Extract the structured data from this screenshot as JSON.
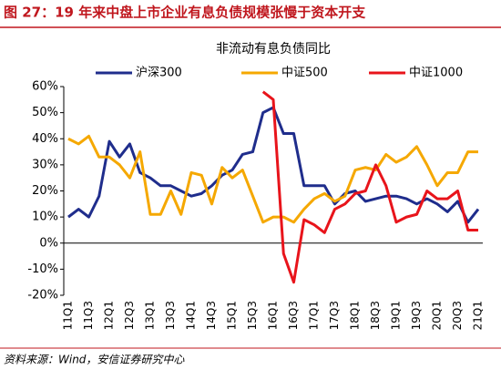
{
  "header": {
    "title": "图 27：19 年来中盘上市企业有息负债规模张慢于资本开支"
  },
  "chart_data": {
    "type": "line",
    "title": "非流动有息负债同比",
    "categories": [
      "11Q1",
      null,
      "11Q3",
      null,
      "12Q1",
      null,
      "12Q3",
      null,
      "13Q1",
      null,
      "13Q3",
      null,
      "14Q1",
      null,
      "14Q3",
      null,
      "15Q1",
      null,
      "15Q3",
      null,
      "16Q1",
      null,
      "16Q3",
      null,
      "17Q1",
      null,
      "17Q3",
      null,
      "18Q1",
      null,
      "18Q3",
      null,
      "19Q1",
      null,
      "19Q3",
      null,
      "20Q1",
      null,
      "20Q3",
      null,
      "21Q1"
    ],
    "series": [
      {
        "name": "沪深300",
        "color": "#1f2d8c",
        "values": [
          10,
          13,
          10,
          18,
          39,
          33,
          38,
          27,
          25,
          22,
          22,
          20,
          18,
          19,
          22,
          26,
          28,
          34,
          35,
          50,
          52,
          42,
          42,
          22,
          22,
          22,
          15,
          19,
          20,
          16,
          17,
          18,
          18,
          17,
          15,
          17,
          15,
          12,
          16,
          8,
          13
        ]
      },
      {
        "name": "中证500",
        "color": "#f5a800",
        "values": [
          40,
          38,
          41,
          33,
          33,
          30,
          25,
          35,
          11,
          11,
          20,
          11,
          27,
          26,
          15,
          29,
          25,
          28,
          18,
          8,
          10,
          10,
          8,
          13,
          17,
          19,
          16,
          18,
          28,
          29,
          28,
          34,
          31,
          33,
          37,
          30,
          22,
          27,
          27,
          35,
          35
        ]
      },
      {
        "name": "中证1000",
        "color": "#e8141b",
        "values": [
          null,
          null,
          null,
          null,
          null,
          null,
          null,
          null,
          null,
          null,
          null,
          null,
          null,
          null,
          null,
          null,
          null,
          null,
          null,
          58,
          55,
          -4,
          -15,
          9,
          7,
          4,
          13,
          15,
          19,
          20,
          30,
          22,
          8,
          10,
          11,
          20,
          17,
          17,
          20,
          5,
          5
        ]
      }
    ],
    "ylim": [
      -20,
      60
    ],
    "yticks": [
      {
        "value": -20,
        "label": "-20%"
      },
      {
        "value": -10,
        "label": "-10%"
      },
      {
        "value": 0,
        "label": "0%"
      },
      {
        "value": 10,
        "label": "10%"
      },
      {
        "value": 20,
        "label": "20%"
      },
      {
        "value": 30,
        "label": "30%"
      },
      {
        "value": 40,
        "label": "40%"
      },
      {
        "value": 50,
        "label": "50%"
      },
      {
        "value": 60,
        "label": "60%"
      }
    ],
    "grid": false,
    "legend": "top"
  },
  "footer": {
    "source": "资料来源：Wind，安信证券研究中心"
  }
}
